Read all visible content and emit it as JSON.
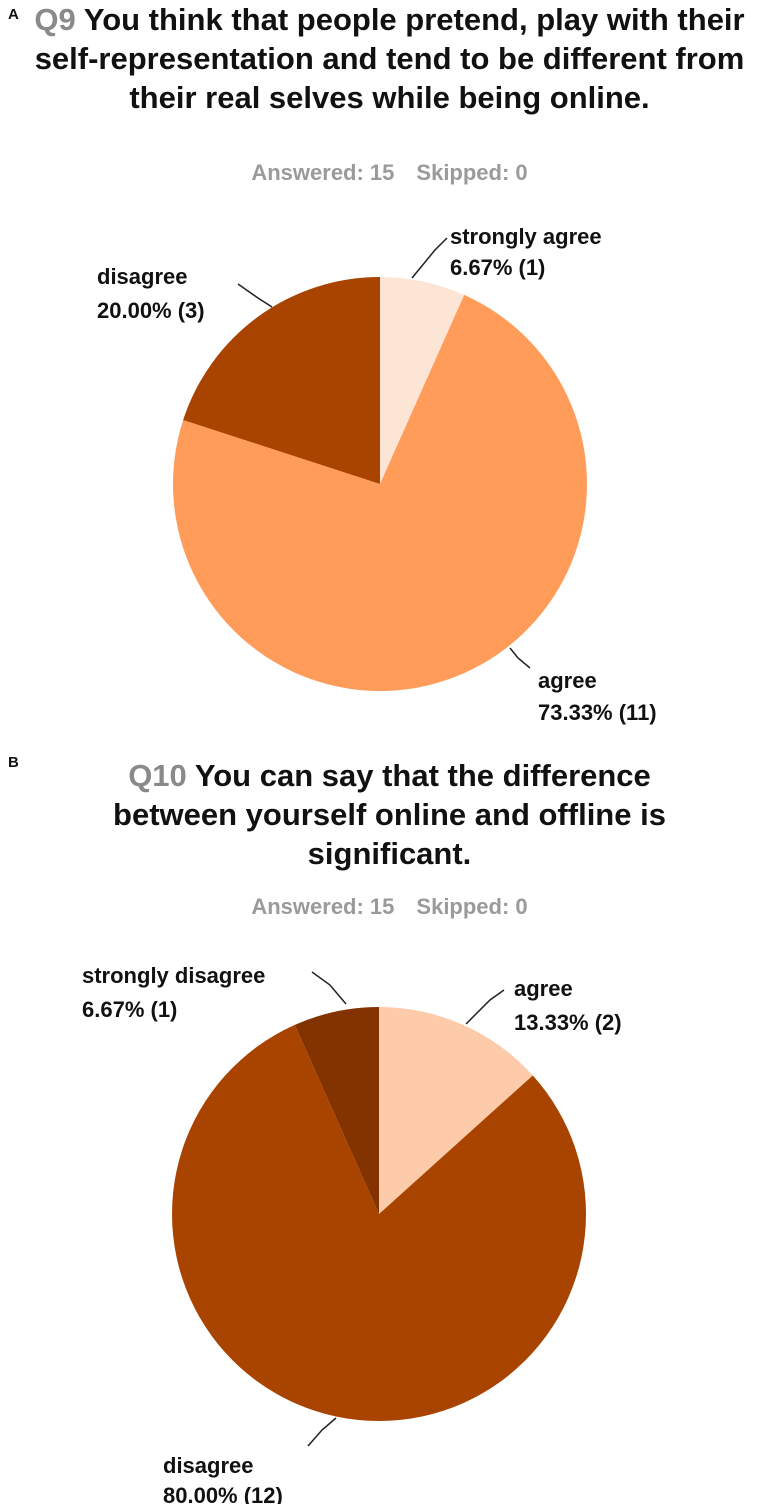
{
  "panels": [
    {
      "letter": "A",
      "qnum": "Q9",
      "title": "You think that people pretend, play with their self-representation and tend to be different from their real selves while being online.",
      "answered": "Answered: 15",
      "skipped": "Skipped: 0"
    },
    {
      "letter": "B",
      "qnum": "Q10",
      "title": "You can say that the difference between yourself online and offline is significant.",
      "answered": "Answered: 15",
      "skipped": "Skipped: 0"
    }
  ],
  "chart_data": [
    {
      "type": "pie",
      "title": "Q9 You think that people pretend, play with their self-representation and tend to be different from their real selves while being online.",
      "slices": [
        {
          "label": "strongly agree",
          "value": 6.67,
          "count": 1,
          "text": "6.67% (1)",
          "color": "#FDE5D6"
        },
        {
          "label": "agree",
          "value": 73.33,
          "count": 11,
          "text": "73.33% (11)",
          "color": "#FF9C5A"
        },
        {
          "label": "disagree",
          "value": 20.0,
          "count": 3,
          "text": "20.00% (3)",
          "color": "#A94300"
        }
      ]
    },
    {
      "type": "pie",
      "title": "Q10 You can say that the difference between yourself online and offline is significant.",
      "slices": [
        {
          "label": "agree",
          "value": 13.33,
          "count": 2,
          "text": "13.33% (2)",
          "color": "#FDCBA9"
        },
        {
          "label": "disagree",
          "value": 80.0,
          "count": 12,
          "text": "80.00% (12)",
          "color": "#A94300"
        },
        {
          "label": "strongly disagree",
          "value": 6.67,
          "count": 1,
          "text": "6.67% (1)",
          "color": "#833300"
        }
      ]
    }
  ]
}
